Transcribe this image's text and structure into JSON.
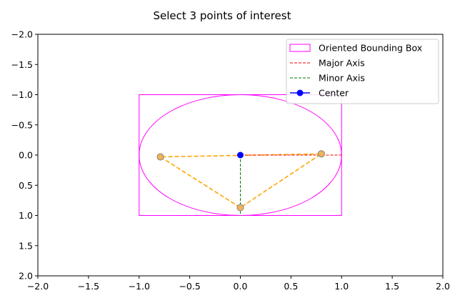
{
  "window": {
    "title": "Select 3 points of interest"
  },
  "chart_data": {
    "type": "scatter",
    "title": "Select 3 points of interest",
    "xlabel": "",
    "ylabel": "",
    "xlim": [
      -2.0,
      2.0
    ],
    "ylim": [
      2.0,
      -2.0
    ],
    "y_inverted": true,
    "grid": false,
    "x_ticks": [
      "−2.0",
      "−1.5",
      "−1.0",
      "−0.5",
      "0.0",
      "0.5",
      "1.0",
      "1.5",
      "2.0"
    ],
    "x_tick_values": [
      -2.0,
      -1.5,
      -1.0,
      -0.5,
      0.0,
      0.5,
      1.0,
      1.5,
      2.0
    ],
    "y_ticks": [
      "−2.0",
      "−1.5",
      "−1.0",
      "−0.5",
      "0.0",
      "0.5",
      "1.0",
      "1.5",
      "2.0"
    ],
    "y_tick_values": [
      -2.0,
      -1.5,
      -1.0,
      -0.5,
      0.0,
      0.5,
      1.0,
      1.5,
      2.0
    ],
    "bounding_box": {
      "corners": [
        [
          -1.0,
          -1.0
        ],
        [
          1.0,
          -1.0
        ],
        [
          1.0,
          1.0
        ],
        [
          -1.0,
          1.0
        ]
      ],
      "color": "#ff00ff"
    },
    "ellipse": {
      "center": [
        0.0,
        0.0
      ],
      "rx": 1.0,
      "ry": 1.0,
      "color": "#ff00ff"
    },
    "major_axis": {
      "from": [
        0.0,
        0.0
      ],
      "to": [
        1.0,
        0.0
      ],
      "color": "#ff0000"
    },
    "minor_axis": {
      "from": [
        0.0,
        0.0
      ],
      "to": [
        0.0,
        1.0
      ],
      "color": "#008000"
    },
    "center_point": {
      "x": 0.0,
      "y": 0.0,
      "color": "#0000ff"
    },
    "selected_points": {
      "points": [
        [
          -0.79,
          0.03
        ],
        [
          0.0,
          0.87
        ],
        [
          0.8,
          -0.02
        ]
      ],
      "face_color": "#f2b356",
      "edge_color": "#808080",
      "line_color": "#ffa500"
    },
    "legend": {
      "placement": "upper-right",
      "entries": [
        {
          "label": "Oriented Bounding Box",
          "kind": "patch",
          "color": "#ff00ff"
        },
        {
          "label": "Major Axis",
          "kind": "dashed-line",
          "color": "#ff0000"
        },
        {
          "label": "Minor Axis",
          "kind": "dashed-line",
          "color": "#008000"
        },
        {
          "label": "Center",
          "kind": "line-marker",
          "color": "#0000ff"
        }
      ]
    }
  }
}
